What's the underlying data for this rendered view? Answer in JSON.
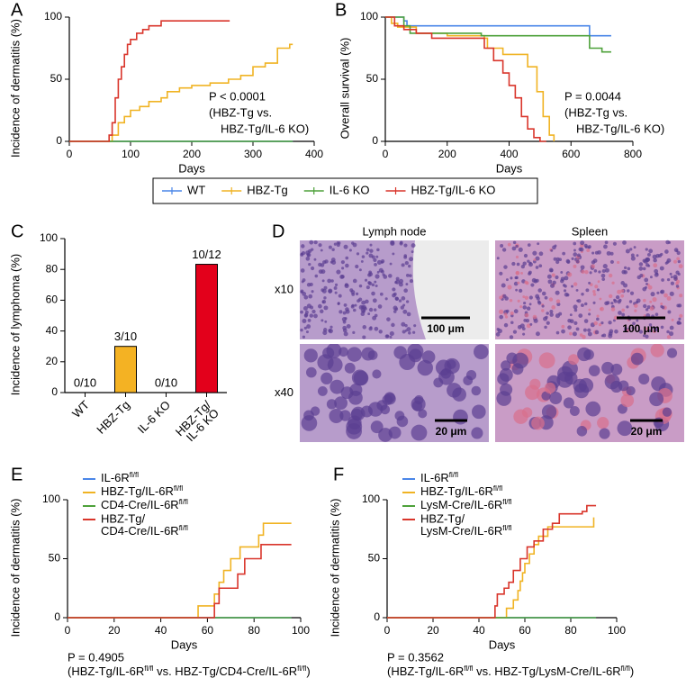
{
  "chart_data": [
    {
      "type": "line",
      "panel": "A",
      "step": true,
      "x_label": "Days",
      "y_label": "Incidence of dermatitis (%)",
      "xlim": [
        0,
        400
      ],
      "xticks": [
        0,
        100,
        200,
        300,
        400
      ],
      "ylim": [
        0,
        100
      ],
      "yticks": [
        0,
        50,
        100
      ],
      "annotation": [
        "P < 0.0001",
        "(HBZ-Tg vs.",
        "HBZ-Tg/IL-6 KO)"
      ],
      "series": [
        {
          "name": "WT",
          "color": "#4a86e8",
          "x": [
            0,
            365
          ],
          "values": [
            0,
            0
          ]
        },
        {
          "name": "HBZ-Tg",
          "color": "#f0b323",
          "x": [
            0,
            60,
            70,
            80,
            90,
            100,
            115,
            130,
            150,
            160,
            180,
            200,
            230,
            260,
            280,
            300,
            320,
            340,
            360,
            365
          ],
          "values": [
            0,
            0,
            5,
            15,
            20,
            25,
            28,
            32,
            35,
            40,
            43,
            45,
            47,
            50,
            53,
            60,
            63,
            75,
            78,
            78
          ]
        },
        {
          "name": "IL-6 KO",
          "color": "#4ea13a",
          "x": [
            0,
            365
          ],
          "values": [
            0,
            0
          ]
        },
        {
          "name": "HBZ-Tg/IL-6 KO",
          "color": "#d9352b",
          "x": [
            0,
            60,
            65,
            70,
            75,
            80,
            85,
            90,
            95,
            100,
            110,
            120,
            130,
            150,
            262
          ],
          "values": [
            0,
            0,
            5,
            15,
            35,
            50,
            60,
            70,
            78,
            82,
            87,
            90,
            93,
            97,
            97
          ]
        }
      ]
    },
    {
      "type": "line",
      "panel": "B",
      "step": true,
      "x_label": "Days",
      "y_label": "Overall survival (%)",
      "xlim": [
        0,
        800
      ],
      "xticks": [
        0,
        200,
        400,
        600,
        800
      ],
      "ylim": [
        0,
        100
      ],
      "yticks": [
        0,
        50,
        100
      ],
      "annotation": [
        "P = 0.0044",
        "(HBZ-Tg vs.",
        "HBZ-Tg/IL-6 KO)"
      ],
      "series": [
        {
          "color": "#4a86e8",
          "x": [
            0,
            60,
            70,
            650,
            660,
            730
          ],
          "values": [
            100,
            97,
            93,
            93,
            85,
            85
          ]
        },
        {
          "color": "#f0b323",
          "x": [
            0,
            20,
            40,
            100,
            200,
            320,
            330,
            380,
            440,
            460,
            490,
            510,
            530,
            545
          ],
          "values": [
            100,
            95,
            92,
            87,
            85,
            83,
            75,
            70,
            70,
            60,
            40,
            20,
            5,
            0
          ]
        },
        {
          "color": "#4ea13a",
          "x": [
            0,
            60,
            80,
            310,
            650,
            660,
            700,
            730
          ],
          "values": [
            100,
            93,
            87,
            85,
            85,
            75,
            72,
            72
          ]
        },
        {
          "color": "#d9352b",
          "x": [
            0,
            30,
            60,
            100,
            150,
            320,
            350,
            380,
            400,
            420,
            440,
            460,
            480,
            500,
            520
          ],
          "values": [
            100,
            93,
            90,
            87,
            83,
            75,
            65,
            55,
            45,
            35,
            20,
            10,
            3,
            0,
            0
          ]
        }
      ]
    },
    {
      "type": "bar",
      "panel": "C",
      "y_label": "Incidence of lymphoma (%)",
      "categories": [
        "WT",
        "HBZ-Tg",
        "IL-6 KO",
        [
          "HBZ-Tg/",
          "IL-6 KO"
        ]
      ],
      "values": [
        0,
        30,
        0,
        83.3
      ],
      "value_labels": [
        "0/10",
        "3/10",
        "0/10",
        "10/12"
      ],
      "colors": [
        "#ffffff",
        "#f4b223",
        "#ffffff",
        "#e3001b"
      ],
      "ylim": [
        0,
        100
      ],
      "yticks": [
        0,
        20,
        40,
        60,
        80,
        100
      ]
    },
    {
      "type": "line",
      "panel": "E",
      "step": true,
      "x_label": "Days",
      "y_label": "Incidence of dermatitis (%)",
      "xlim": [
        0,
        100
      ],
      "xticks": [
        0,
        20,
        40,
        60,
        80,
        100
      ],
      "ylim": [
        0,
        100
      ],
      "yticks": [
        0,
        50,
        100
      ],
      "annotation": [
        "P = 0.4905",
        [
          {
            "text": "(HBZ-Tg/IL-6R"
          },
          {
            "text": "fl/fl",
            "sup": true
          },
          {
            "text": " vs. HBZ-Tg/CD4-Cre/IL-6R"
          },
          {
            "text": "fl/fl",
            "sup": true
          },
          {
            "text": ")"
          }
        ]
      ],
      "series": [
        {
          "name": [
            [
              {
                "text": "IL-6R"
              },
              {
                "text": "fl/fl",
                "sup": true
              }
            ]
          ],
          "color": "#4a86e8",
          "x": [
            0,
            96
          ],
          "values": [
            0,
            0
          ]
        },
        {
          "name": [
            [
              {
                "text": "HBZ-Tg/IL-6R"
              },
              {
                "text": "fl/fl",
                "sup": true
              }
            ]
          ],
          "color": "#f0b323",
          "x": [
            0,
            56,
            63,
            65,
            67,
            70,
            74,
            82,
            84,
            96
          ],
          "values": [
            0,
            10,
            20,
            30,
            40,
            50,
            60,
            70,
            80,
            80
          ]
        },
        {
          "name": [
            [
              {
                "text": "CD4-Cre/IL-6R"
              },
              {
                "text": "fl/fl",
                "sup": true
              }
            ]
          ],
          "color": "#4ea13a",
          "x": [
            0,
            96
          ],
          "values": [
            0,
            0
          ]
        },
        {
          "name": [
            "HBZ-Tg/",
            [
              {
                "text": "CD4-Cre/IL-6R"
              },
              {
                "text": "fl/fl",
                "sup": true
              }
            ]
          ],
          "color": "#d9352b",
          "x": [
            0,
            63,
            65,
            73,
            76,
            83,
            96
          ],
          "values": [
            0,
            12,
            25,
            37,
            50,
            62,
            62
          ]
        }
      ]
    },
    {
      "type": "line",
      "panel": "F",
      "step": true,
      "x_label": "Days",
      "y_label": "Incidence of dermatitis (%)",
      "xlim": [
        0,
        100
      ],
      "xticks": [
        0,
        20,
        40,
        60,
        80,
        100
      ],
      "ylim": [
        0,
        100
      ],
      "yticks": [
        0,
        50,
        100
      ],
      "annotation": [
        "P = 0.3562",
        [
          {
            "text": "(HBZ-Tg/IL-6R"
          },
          {
            "text": "fl/fl",
            "sup": true
          },
          {
            "text": " vs. HBZ-Tg/LysM-Cre/IL-6R"
          },
          {
            "text": "fl/fl",
            "sup": true
          },
          {
            "text": ")"
          }
        ]
      ],
      "series": [
        {
          "name": [
            [
              {
                "text": "IL-6R"
              },
              {
                "text": "fl/fl",
                "sup": true
              }
            ]
          ],
          "color": "#4a86e8",
          "x": [
            0,
            91
          ],
          "values": [
            0,
            0
          ]
        },
        {
          "name": [
            [
              {
                "text": "HBZ-Tg/IL-6R"
              },
              {
                "text": "fl/fl",
                "sup": true
              }
            ]
          ],
          "color": "#f0b323",
          "x": [
            0,
            50,
            52,
            55,
            57,
            58,
            59,
            60,
            62,
            64,
            66,
            70,
            90
          ],
          "values": [
            0,
            0,
            8,
            15,
            23,
            31,
            38,
            46,
            54,
            62,
            69,
            77,
            85
          ]
        },
        {
          "name": [
            [
              {
                "text": "LysM-Cre/IL-6R"
              },
              {
                "text": "fl/fl",
                "sup": true
              }
            ]
          ],
          "color": "#4ea13a",
          "x": [
            0,
            91
          ],
          "values": [
            0,
            0
          ]
        },
        {
          "name": [
            "HBZ-Tg/",
            [
              {
                "text": "LysM-Cre/IL-6R"
              },
              {
                "text": "fl/fl",
                "sup": true
              }
            ]
          ],
          "color": "#d9352b",
          "x": [
            0,
            46,
            47,
            48,
            51,
            53,
            55,
            58,
            61,
            64,
            68,
            72,
            75,
            85,
            87,
            91
          ],
          "values": [
            0,
            0,
            10,
            20,
            25,
            30,
            40,
            50,
            60,
            65,
            75,
            80,
            88,
            90,
            95,
            95
          ]
        }
      ]
    }
  ],
  "histology": {
    "panel": "D",
    "columns": [
      "Lymph node",
      "Spleen"
    ],
    "rows": [
      "x10",
      "x40"
    ],
    "scale_bars": [
      [
        "100 μm",
        "100 μm"
      ],
      [
        "20 μm",
        "20 μm"
      ]
    ]
  }
}
